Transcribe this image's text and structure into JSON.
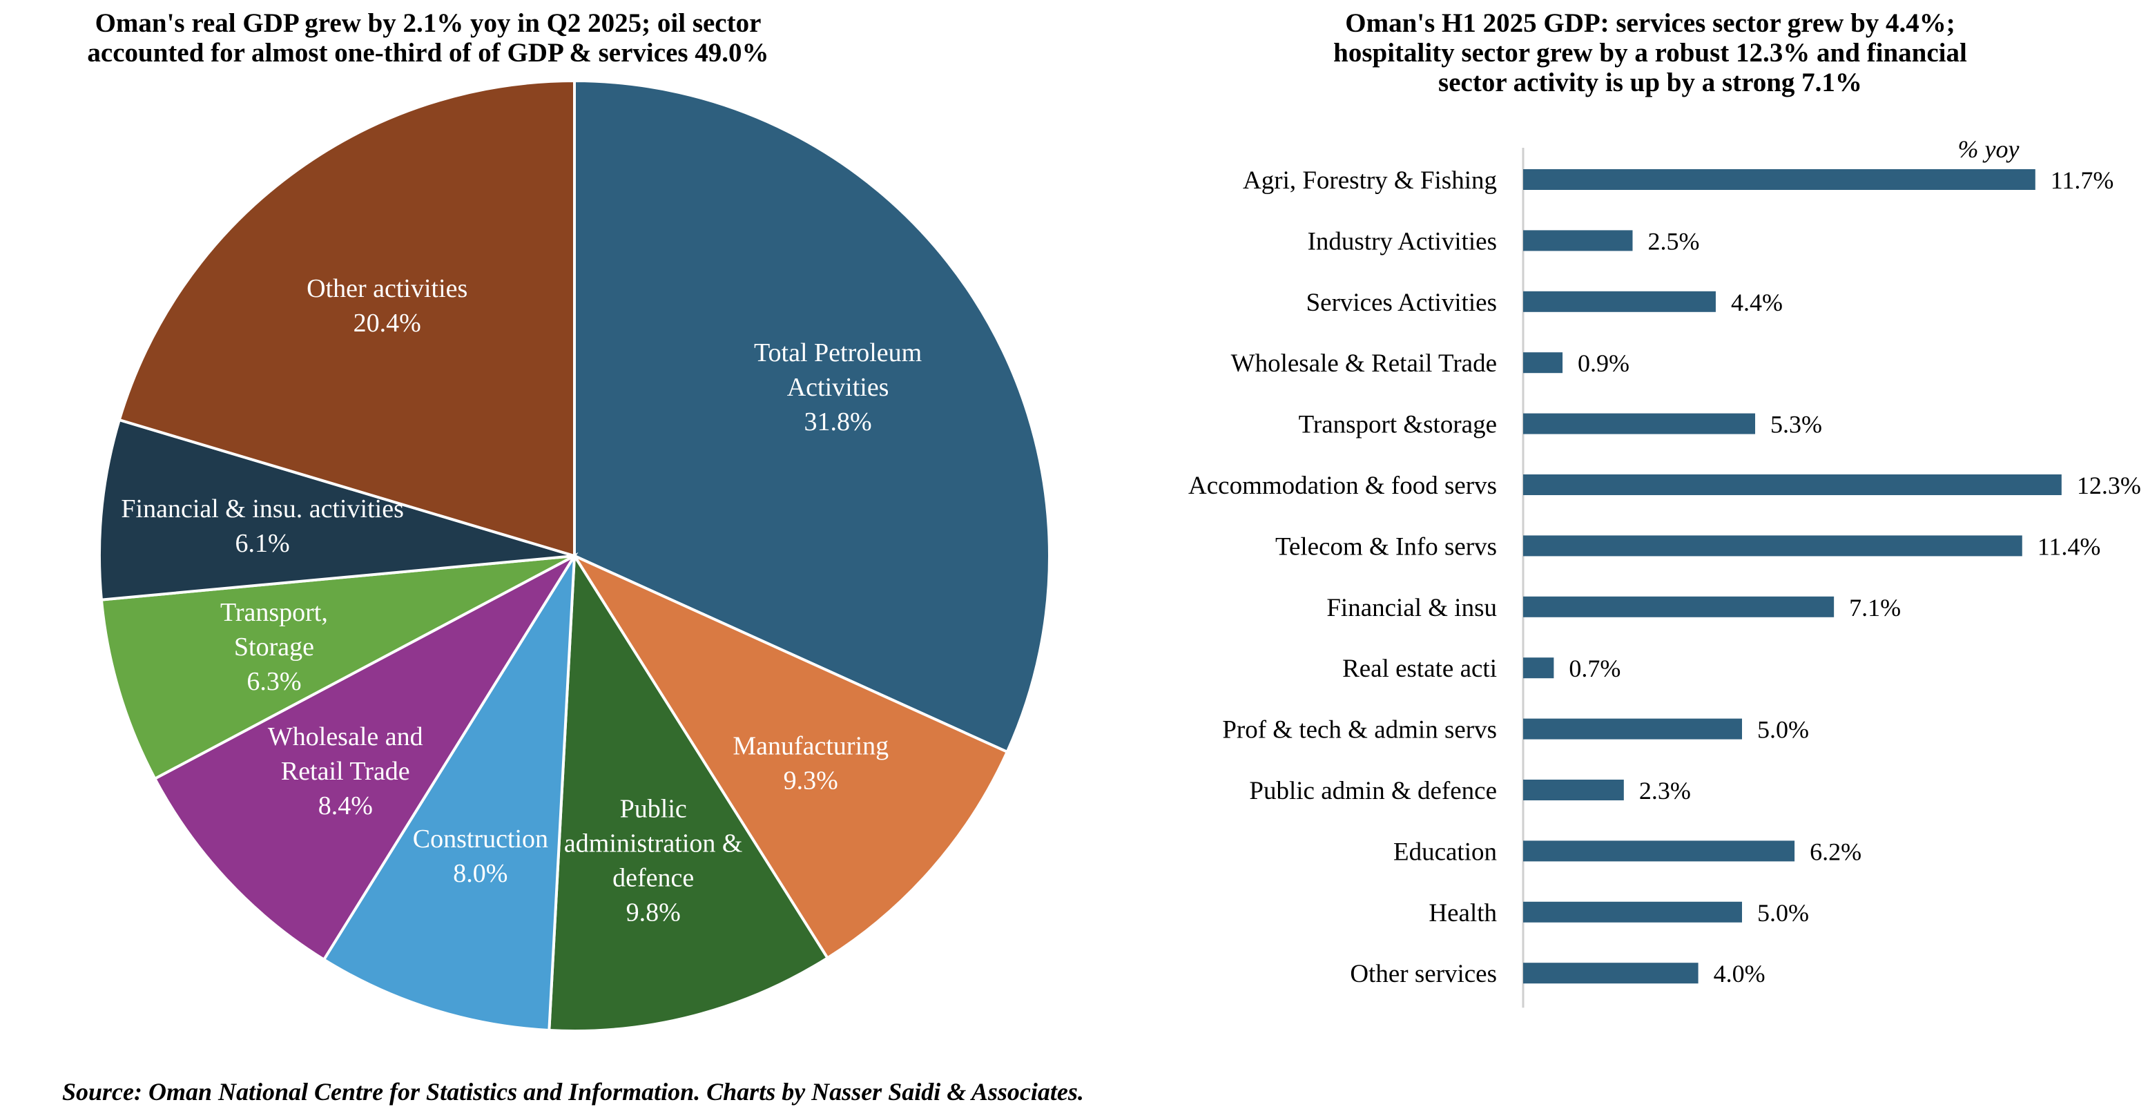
{
  "chart_data": [
    {
      "type": "pie",
      "title": "Oman's real GDP grew by 2.1% yoy in Q2 2025; oil sector\naccounted for almost one-third of of GDP & services 49.0%",
      "slices": [
        {
          "label": [
            "Total Petroleum",
            "Activities"
          ],
          "value": 31.8,
          "value_label": "31.8%",
          "color": "#2e5f7e"
        },
        {
          "label": [
            "Manufacturing"
          ],
          "value": 9.3,
          "value_label": "9.3%",
          "color": "#d97a43"
        },
        {
          "label": [
            "Public",
            "administration &",
            "defence"
          ],
          "value": 9.8,
          "value_label": "9.8%",
          "color": "#336b2d"
        },
        {
          "label": [
            "Construction"
          ],
          "value": 8.0,
          "value_label": "8.0%",
          "color": "#4a9fd4"
        },
        {
          "label": [
            "Wholesale and",
            "Retail Trade"
          ],
          "value": 8.4,
          "value_label": "8.4%",
          "color": "#90368e"
        },
        {
          "label": [
            "Transport,",
            "Storage"
          ],
          "value": 6.3,
          "value_label": "6.3%",
          "color": "#67a844"
        },
        {
          "label": [
            "Financial & insu. activities"
          ],
          "value": 6.1,
          "value_label": "6.1%",
          "color": "#1f3a4d"
        },
        {
          "label": [
            "Other activities"
          ],
          "value": 20.4,
          "value_label": "20.4%",
          "color": "#8b4420"
        }
      ]
    },
    {
      "type": "bar",
      "orientation": "horizontal",
      "title": "Oman's H1 2025 GDP: services sector grew by 4.4%;\nhospitality sector grew by a robust 12.3% and financial\nsector activity is up by a strong 7.1%",
      "unit_label": "% yoy",
      "bar_color": "#2e5f7e",
      "categories": [
        "Agri, Forestry & Fishing",
        "Industry Activities",
        "Services Activities",
        "Wholesale & Retail Trade",
        "Transport &storage",
        "Accommodation & food servs",
        "Telecom & Info servs",
        "Financial & insu",
        "Real estate acti",
        "Prof & tech & admin servs",
        "Public admin & defence",
        "Education",
        "Health",
        "Other services"
      ],
      "values": [
        11.7,
        2.5,
        4.4,
        0.9,
        5.3,
        12.3,
        11.4,
        7.1,
        0.7,
        5.0,
        2.3,
        6.2,
        5.0,
        4.0
      ],
      "value_labels": [
        "11.7%",
        "2.5%",
        "4.4%",
        "0.9%",
        "5.3%",
        "12.3%",
        "11.4%",
        "7.1%",
        "0.7%",
        "5.0%",
        "2.3%",
        "6.2%",
        "5.0%",
        "4.0%"
      ]
    }
  ],
  "source": "Source: Oman National Centre for Statistics and Information. Charts by Nasser Saidi & Associates."
}
